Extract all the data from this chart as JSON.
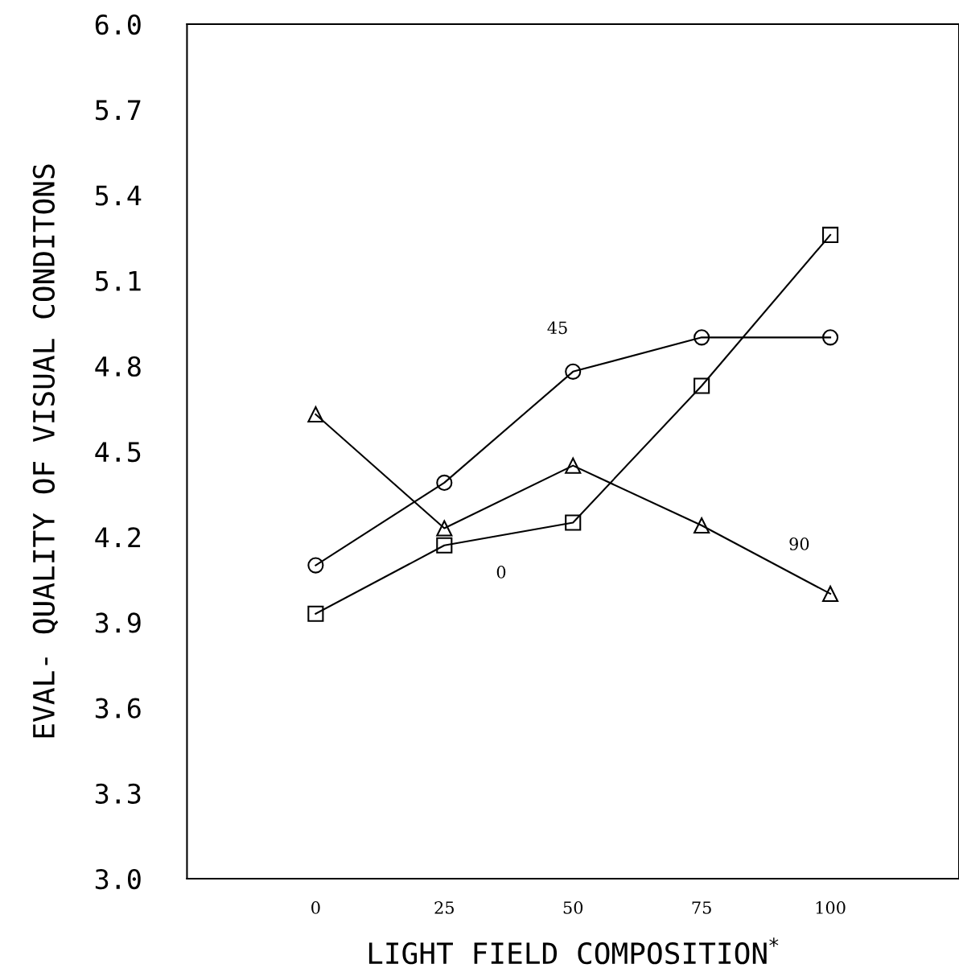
{
  "chart_data": {
    "type": "line",
    "xlabel": "LIGHT FIELD COMPOSITION$^{*}$",
    "ylabel": "EVAL- QUALITY OF VISUAL CONDITONS",
    "x": [
      0,
      25,
      50,
      75,
      100
    ],
    "series": [
      {
        "name": "45",
        "color": "#000000",
        "marker": "circle",
        "values": [
          4.1,
          4.39,
          4.78,
          4.9,
          4.9
        ]
      },
      {
        "name": "0",
        "color": "#000000",
        "marker": "square",
        "values": [
          3.93,
          4.17,
          4.25,
          4.73,
          5.26
        ]
      },
      {
        "name": "90",
        "color": "#000000",
        "marker": "triangle",
        "values": [
          4.63,
          4.23,
          4.45,
          4.24,
          4.0
        ]
      }
    ],
    "xlim": [
      -25,
      125
    ],
    "xticks": [
      0,
      25,
      50,
      75,
      100
    ],
    "ylim": [
      3.0,
      6.0
    ],
    "yticks": [
      {
        "value": 3.0,
        "label": "3.0"
      },
      3.3,
      3.6,
      3.9,
      4.2,
      4.5,
      4.8,
      5.1,
      5.4,
      5.7,
      {
        "value": 6.0,
        "label": "6.0"
      }
    ],
    "grid": false,
    "line_style": "solid"
  }
}
